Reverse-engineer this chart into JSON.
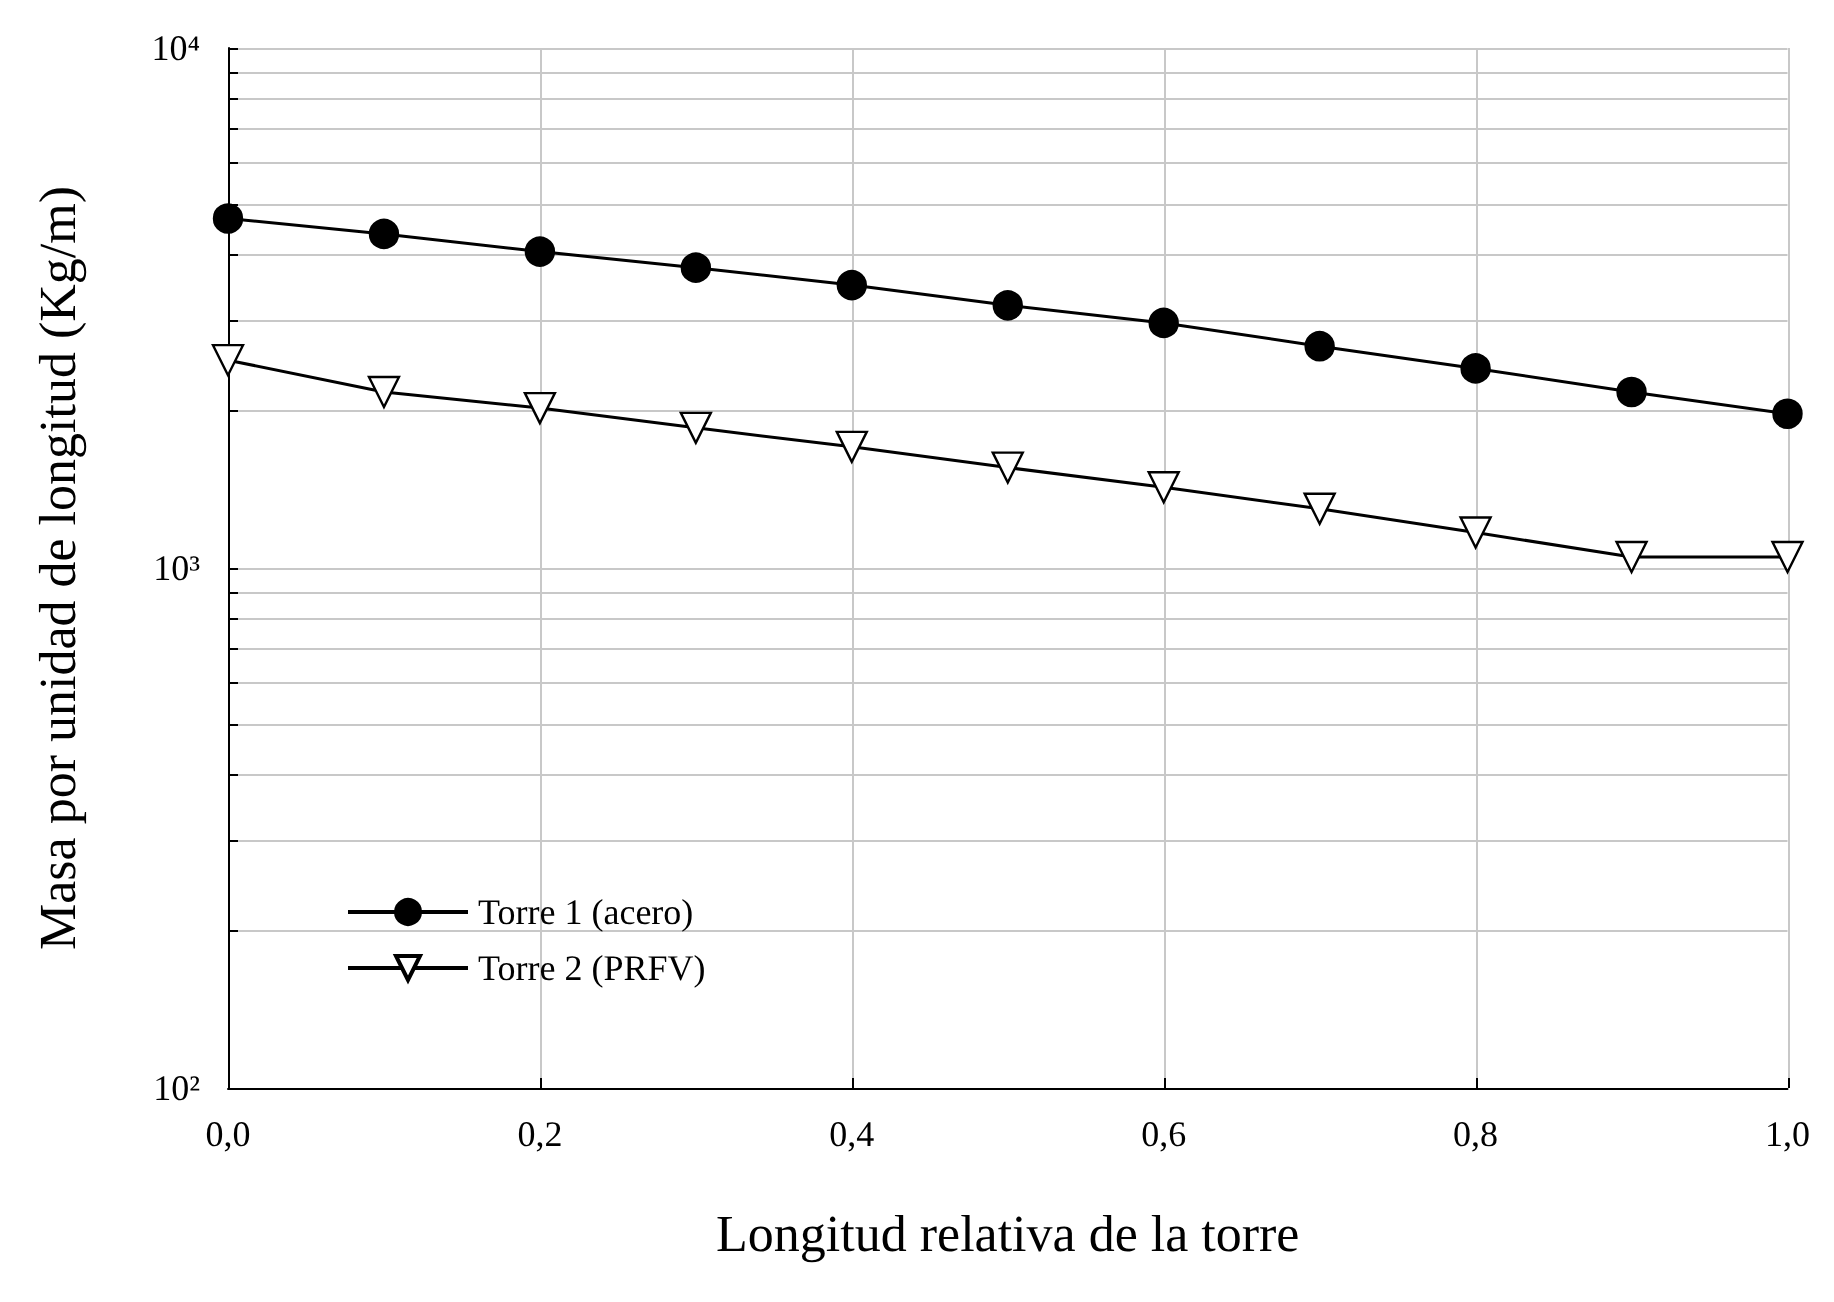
{
  "chart_data": {
    "type": "line",
    "xlabel": "Longitud relativa de la torre",
    "ylabel": "Masa por unidad de longitud (Kg/m)",
    "x": [
      0,
      0.1,
      0.2,
      0.3,
      0.4,
      0.5,
      0.6,
      0.7,
      0.8,
      0.9,
      1.0
    ],
    "series": [
      {
        "name": "Torre 1 (acero)",
        "color": "#000000",
        "marker": "circle",
        "values": [
          4700,
          4390,
          4060,
          3780,
          3500,
          3200,
          2960,
          2670,
          2420,
          2180,
          1980
        ]
      },
      {
        "name": "Torre 2 (PRFV)",
        "color": "#000000",
        "marker": "triangle",
        "values": [
          2510,
          2180,
          2030,
          1860,
          1710,
          1560,
          1430,
          1300,
          1170,
          1050,
          1050
        ]
      }
    ],
    "log": "y",
    "xlim": [
      0,
      1
    ],
    "xticks": [
      {
        "value": 0,
        "label": "0,0"
      },
      {
        "value": 0.2,
        "label": "0,2"
      },
      {
        "value": 0.4,
        "label": "0,4"
      },
      {
        "value": 0.6,
        "label": "0,6"
      },
      {
        "value": 0.8,
        "label": "0,8"
      },
      {
        "value": 1,
        "label": "1,0"
      }
    ],
    "ylim": [
      100,
      10000
    ],
    "yticks": [
      {
        "value": 100,
        "label": "10²"
      },
      {
        "value": 200,
        "label": null
      },
      {
        "value": 300,
        "label": null
      },
      {
        "value": 400,
        "label": null
      },
      {
        "value": 500,
        "label": null
      },
      {
        "value": 600,
        "label": null
      },
      {
        "value": 700,
        "label": null
      },
      {
        "value": 800,
        "label": null
      },
      {
        "value": 900,
        "label": null
      },
      {
        "value": 1000,
        "label": "10³"
      },
      {
        "value": 2000,
        "label": null
      },
      {
        "value": 3000,
        "label": null
      },
      {
        "value": 4000,
        "label": null
      },
      {
        "value": 5000,
        "label": null
      },
      {
        "value": 6000,
        "label": null
      },
      {
        "value": 7000,
        "label": null
      },
      {
        "value": 8000,
        "label": null
      },
      {
        "value": 9000,
        "label": null
      },
      {
        "value": 10000,
        "label": "10⁴"
      }
    ],
    "grid": true,
    "legend": "bottom left",
    "line_style": "solid"
  }
}
